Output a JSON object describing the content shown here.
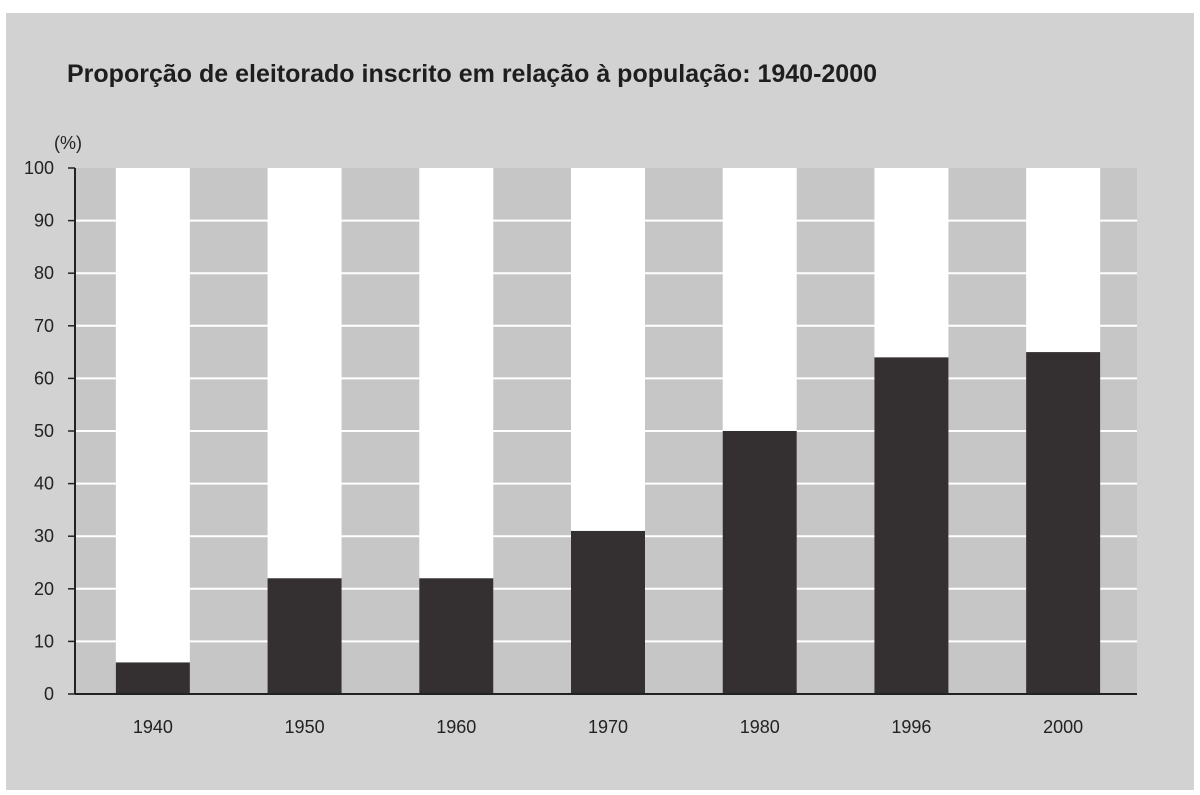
{
  "chart_data": {
    "type": "bar",
    "title": "Proporção de eleitorado inscrito em relação à população: 1940-2000",
    "ylabel": "(%)",
    "xlabel": "",
    "categories": [
      "1940",
      "1950",
      "1960",
      "1970",
      "1980",
      "1996",
      "2000"
    ],
    "values": [
      6,
      22,
      22,
      31,
      50,
      64,
      65
    ],
    "ylim": [
      0,
      100
    ],
    "yticks": [
      "0",
      "10",
      "20",
      "30",
      "40",
      "50",
      "60",
      "70",
      "80",
      "90",
      "100"
    ],
    "grid": true,
    "legend": "none",
    "colors": {
      "bar": "#342f30",
      "column_background": "#ffffff",
      "plot_background": "#c6c6c6",
      "gridline": "#ffffff",
      "axis": "#222222",
      "panel": "#d2d2d2"
    }
  }
}
